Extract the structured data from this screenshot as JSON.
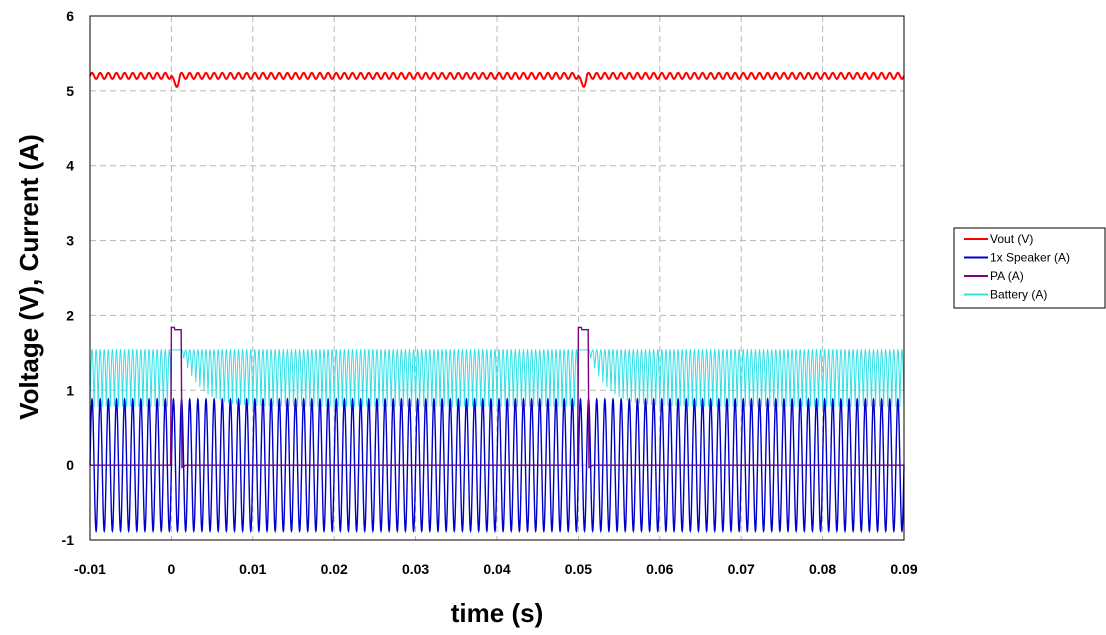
{
  "chart_data": {
    "type": "line",
    "xlabel": "time (s)",
    "ylabel": "Voltage (V), Current (A)",
    "xlim": [
      -0.01,
      0.09
    ],
    "ylim": [
      -1,
      6
    ],
    "xticks": [
      "-0.01",
      "0",
      "0.01",
      "0.02",
      "0.03",
      "0.04",
      "0.05",
      "0.06",
      "0.07",
      "0.08",
      "0.09"
    ],
    "yticks": [
      "-1",
      "0",
      "1",
      "2",
      "3",
      "4",
      "5",
      "6"
    ],
    "grid": true,
    "legend_position": "right",
    "pulse_times": [
      0,
      0.05
    ],
    "pulse_width": 0.0012,
    "series": [
      {
        "name": "Vout (V)",
        "color": "#ff0000",
        "baseline": 5.2,
        "ripple_peak_to_peak": 0.08,
        "dip_min": 5.08
      },
      {
        "name": "1x Speaker (A)",
        "color": "#0000cc",
        "amplitude": 0.88,
        "frequency_hz": 1000
      },
      {
        "name": "PA (A)",
        "color": "#800080",
        "idle": 0.0,
        "pulse_level": 1.84
      },
      {
        "name": "Battery (A)",
        "color": "#33e0e6",
        "peak": 1.54,
        "trough_steady": 0.78,
        "trough_after_pulse_start": 1.52
      }
    ]
  }
}
